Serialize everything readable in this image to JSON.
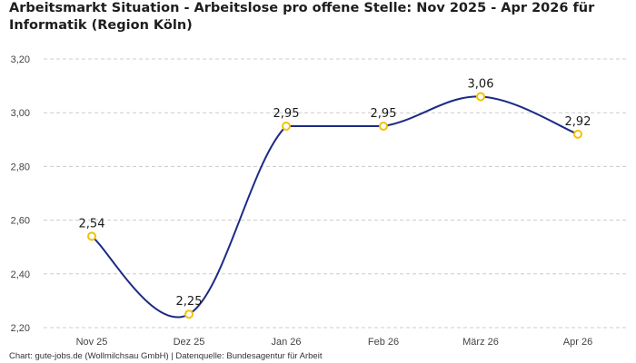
{
  "title": "Arbeitsmarkt Situation - Arbeitslose pro offene Stelle: Nov 2025 - Apr 2026 für Informatik (Region Köln)",
  "footer": "Chart: gute-jobs.de (Wollmilchsau GmbH) | Datenquelle: Bundesagentur für Arbeit",
  "colors": {
    "line": "#1c2a85",
    "marker": "#f2c200",
    "grid": "#cccccc"
  },
  "chart_data": {
    "type": "line",
    "title": "Arbeitsmarkt Situation - Arbeitslose pro offene Stelle: Nov 2025 - Apr 2026 für Informatik (Region Köln)",
    "xlabel": "",
    "ylabel": "",
    "categories": [
      "Nov 25",
      "Dez 25",
      "Jan 26",
      "Feb 26",
      "März 26",
      "Apr 26"
    ],
    "values": [
      2.54,
      2.25,
      2.95,
      2.95,
      3.06,
      2.92
    ],
    "data_labels": [
      "2,54",
      "2,25",
      "2,95",
      "2,95",
      "3,06",
      "2,92"
    ],
    "y_ticks": [
      2.2,
      2.4,
      2.6,
      2.8,
      3.0,
      3.2
    ],
    "y_tick_labels": [
      "2,20",
      "2,40",
      "2,60",
      "2,80",
      "3,00",
      "3,20"
    ],
    "ylim": [
      2.2,
      3.2
    ],
    "grid": true,
    "legend": "none",
    "smooth": true
  }
}
